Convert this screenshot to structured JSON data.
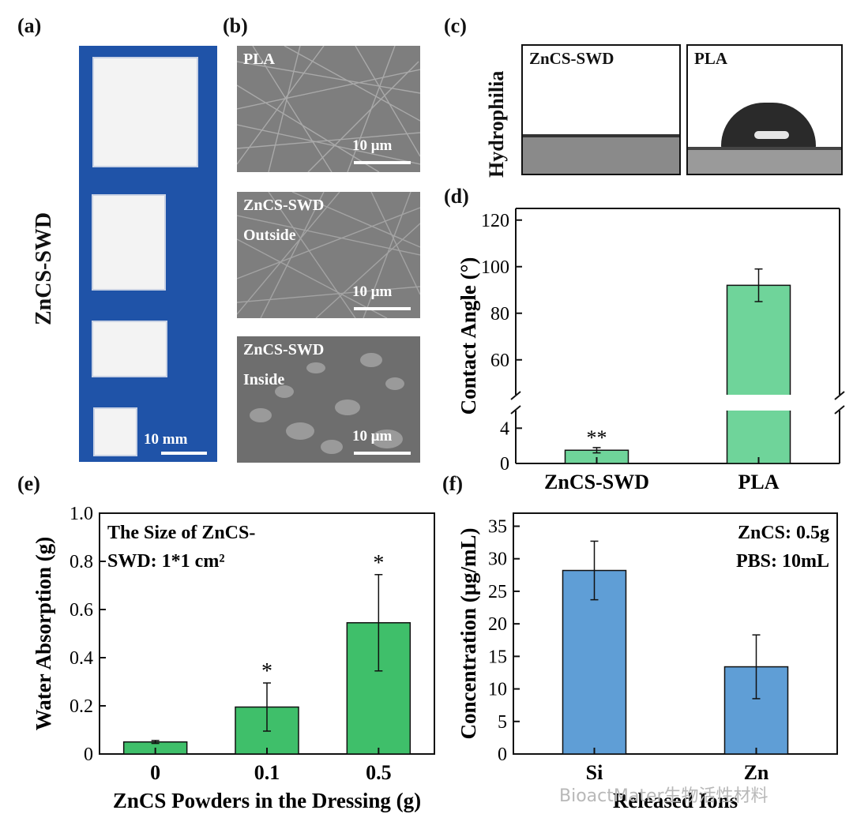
{
  "panels": {
    "a": {
      "label": "(a)",
      "side_label": "ZnCS-SWD",
      "scale_text": "10 mm"
    },
    "b": {
      "label": "(b)",
      "images": [
        {
          "label_lines": [
            "PLA"
          ],
          "scale_text": "10 μm"
        },
        {
          "label_lines": [
            "ZnCS-SWD",
            "Outside"
          ],
          "scale_text": "10 μm"
        },
        {
          "label_lines": [
            "ZnCS-SWD",
            "Inside"
          ],
          "scale_text": "10 μm"
        }
      ]
    },
    "c": {
      "label": "(c)",
      "row_label": "Hydrophilia",
      "left_title": "ZnCS-SWD",
      "right_title": "PLA"
    },
    "d": {
      "label": "(d)"
    },
    "e": {
      "label": "(e)"
    },
    "f": {
      "label": "(f)"
    }
  },
  "colors": {
    "photo_bg": "#1f53a8",
    "green_d": "#6fd49a",
    "green_e": "#3fbf6a",
    "blue_f": "#5f9ed6"
  },
  "watermark": "BioactMater生物活性材料",
  "chart_data": [
    {
      "id": "d",
      "type": "bar",
      "categories": [
        "ZnCS-SWD",
        "PLA"
      ],
      "values": [
        1.5,
        92
      ],
      "errors": [
        0.3,
        7
      ],
      "ylabel": "Contact Angle (°)",
      "xlabel": "",
      "axis_break": {
        "lower": [
          0,
          6
        ],
        "upper": [
          45,
          125
        ]
      },
      "yticks_lower": [
        0,
        4
      ],
      "yticks_upper": [
        60,
        80,
        100,
        120
      ],
      "annotations": [
        {
          "category": "ZnCS-SWD",
          "text": "**"
        }
      ],
      "grid": false
    },
    {
      "id": "e",
      "type": "bar",
      "categories": [
        "0",
        "0.1",
        "0.5"
      ],
      "values": [
        0.05,
        0.195,
        0.545
      ],
      "errors": [
        0.006,
        0.1,
        0.2
      ],
      "ylabel": "Water Absorption (g)",
      "xlabel": "ZnCS Powders in the Dressing (g)",
      "ylim": [
        0,
        1.0
      ],
      "yticks": [
        "0",
        "0.2",
        "0.4",
        "0.6",
        "0.8",
        "1.0"
      ],
      "annotations": [
        {
          "category": "0.1",
          "text": "*"
        },
        {
          "category": "0.5",
          "text": "*"
        }
      ],
      "inset_text": [
        "The Size of ZnCS-",
        "SWD: 1*1 cm²"
      ],
      "grid": false
    },
    {
      "id": "f",
      "type": "bar",
      "categories": [
        "Si",
        "Zn"
      ],
      "values": [
        28.2,
        13.4
      ],
      "errors": [
        4.5,
        4.9
      ],
      "ylabel": "Concentration (μg/mL)",
      "xlabel": "Released Ions",
      "ylim": [
        0,
        37
      ],
      "yticks": [
        "0",
        "5",
        "10",
        "15",
        "20",
        "25",
        "30",
        "35"
      ],
      "inset_text": [
        "ZnCS: 0.5g",
        "PBS: 10mL"
      ],
      "grid": false
    }
  ]
}
